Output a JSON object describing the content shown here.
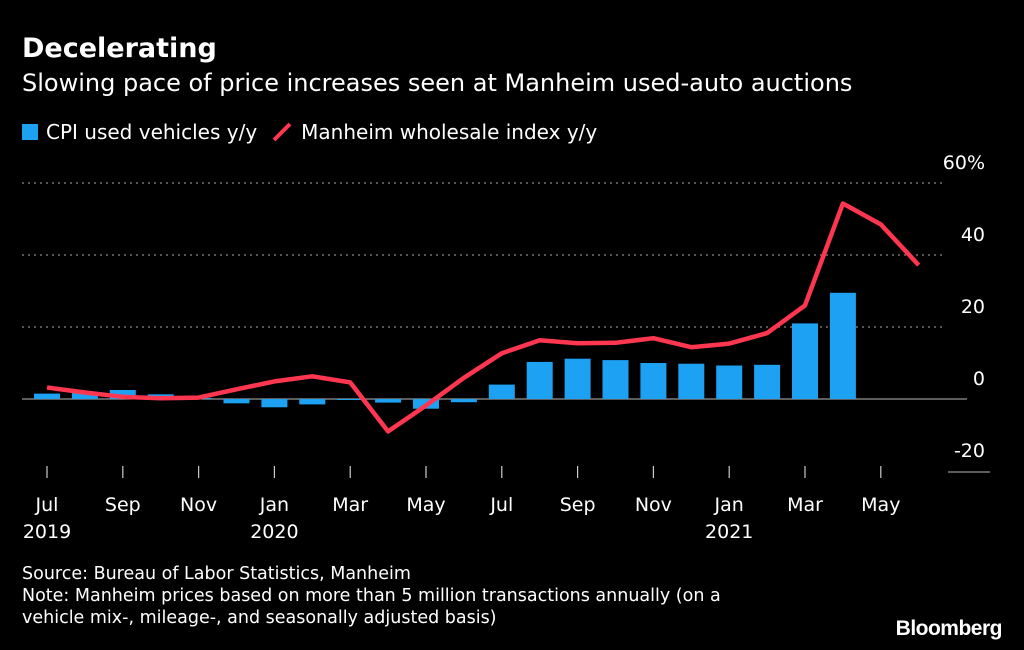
{
  "header": {
    "title": "Decelerating",
    "subtitle": "Slowing pace of price increases seen at Manheim used-auto auctions"
  },
  "legend": [
    {
      "label": "CPI used vehicles y/y",
      "type": "bar",
      "color": "#1da1f2"
    },
    {
      "label": "Manheim wholesale index y/y",
      "type": "line",
      "color": "#ff3650"
    }
  ],
  "footer": {
    "source": "Source: Bureau of Labor Statistics, Manheim",
    "note_line1": "Note: Manheim prices based on more than 5 million transactions annually (on a",
    "note_line2": "vehicle mix-, mileage-, and seasonally adjusted basis)"
  },
  "brand": "Bloomberg",
  "chart_data": {
    "type": "bar",
    "x": [
      "2019-07",
      "2019-08",
      "2019-09",
      "2019-10",
      "2019-11",
      "2019-12",
      "2020-01",
      "2020-02",
      "2020-03",
      "2020-04",
      "2020-05",
      "2020-06",
      "2020-07",
      "2020-08",
      "2020-09",
      "2020-10",
      "2020-11",
      "2020-12",
      "2021-01",
      "2021-02",
      "2021-03",
      "2021-04",
      "2021-05",
      "2021-06"
    ],
    "series": [
      {
        "name": "CPI used vehicles y/y",
        "type": "bar",
        "color": "#1da1f2",
        "values": [
          1.5,
          2.0,
          2.5,
          1.3,
          0.3,
          -1.2,
          -2.3,
          -1.5,
          -0.2,
          -1.0,
          -2.7,
          -0.9,
          4.0,
          10.3,
          11.2,
          10.8,
          10.0,
          9.8,
          9.3,
          9.5,
          21.0,
          29.5,
          null,
          null
        ]
      },
      {
        "name": "Manheim wholesale index y/y",
        "type": "line",
        "color": "#ff3650",
        "values": [
          3.2,
          1.8,
          0.6,
          0.2,
          0.4,
          2.7,
          4.9,
          6.3,
          4.6,
          -9.0,
          -1.8,
          5.9,
          12.7,
          16.3,
          15.5,
          15.6,
          16.9,
          14.4,
          15.4,
          18.3,
          26.0,
          54.3,
          48.5,
          37.2
        ]
      }
    ],
    "x_tick_labels": [
      {
        "x": "2019-07",
        "month": "Jul",
        "year": "2019"
      },
      {
        "x": "2019-09",
        "month": "Sep",
        "year": ""
      },
      {
        "x": "2019-11",
        "month": "Nov",
        "year": ""
      },
      {
        "x": "2020-01",
        "month": "Jan",
        "year": "2020"
      },
      {
        "x": "2020-03",
        "month": "Mar",
        "year": ""
      },
      {
        "x": "2020-05",
        "month": "May",
        "year": ""
      },
      {
        "x": "2020-07",
        "month": "Jul",
        "year": ""
      },
      {
        "x": "2020-09",
        "month": "Sep",
        "year": ""
      },
      {
        "x": "2020-11",
        "month": "Nov",
        "year": ""
      },
      {
        "x": "2021-01",
        "month": "Jan",
        "year": "2021"
      },
      {
        "x": "2021-03",
        "month": "Mar",
        "year": ""
      },
      {
        "x": "2021-05",
        "month": "May",
        "year": ""
      }
    ],
    "y_ticks": [
      {
        "value": 60,
        "label": "60%"
      },
      {
        "value": 40,
        "label": "40"
      },
      {
        "value": 20,
        "label": "20"
      },
      {
        "value": 0,
        "label": "0"
      },
      {
        "value": -20,
        "label": "-20"
      }
    ],
    "ylim": [
      -20,
      60
    ],
    "grid": true,
    "legend_position": "top-left"
  }
}
